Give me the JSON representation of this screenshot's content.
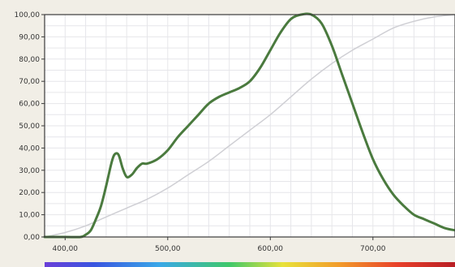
{
  "chart_data": {
    "type": "line",
    "title": "",
    "xlabel": "",
    "ylabel": "",
    "xlim": [
      380,
      780
    ],
    "ylim": [
      0,
      100
    ],
    "grid": true,
    "x_ticks": [
      "400,00",
      "500,00",
      "600,00",
      "700,00"
    ],
    "x_tick_values": [
      400,
      500,
      600,
      700
    ],
    "y_ticks": [
      "0,00",
      "10,00",
      "20,00",
      "30,00",
      "40,00",
      "50,00",
      "60,00",
      "70,00",
      "80,00",
      "90,00",
      "100,00"
    ],
    "y_tick_values": [
      0,
      10,
      20,
      30,
      40,
      50,
      60,
      70,
      80,
      90,
      100
    ],
    "series": [
      {
        "color": "#4a7a3e",
        "points": [
          [
            380,
            0
          ],
          [
            400,
            0
          ],
          [
            415,
            0
          ],
          [
            420,
            1
          ],
          [
            425,
            3
          ],
          [
            430,
            8
          ],
          [
            435,
            14
          ],
          [
            440,
            23
          ],
          [
            445,
            33
          ],
          [
            448,
            37
          ],
          [
            452,
            37
          ],
          [
            456,
            31
          ],
          [
            460,
            27
          ],
          [
            465,
            28
          ],
          [
            470,
            31
          ],
          [
            475,
            33
          ],
          [
            480,
            33
          ],
          [
            490,
            35
          ],
          [
            500,
            39
          ],
          [
            510,
            45
          ],
          [
            520,
            50
          ],
          [
            530,
            55
          ],
          [
            540,
            60
          ],
          [
            550,
            63
          ],
          [
            560,
            65
          ],
          [
            570,
            67
          ],
          [
            580,
            70
          ],
          [
            590,
            76
          ],
          [
            600,
            84
          ],
          [
            610,
            92
          ],
          [
            620,
            98
          ],
          [
            630,
            100
          ],
          [
            640,
            100
          ],
          [
            650,
            96
          ],
          [
            660,
            86
          ],
          [
            670,
            73
          ],
          [
            680,
            60
          ],
          [
            690,
            47
          ],
          [
            700,
            35
          ],
          [
            710,
            26
          ],
          [
            720,
            19
          ],
          [
            730,
            14
          ],
          [
            740,
            10
          ],
          [
            750,
            8
          ],
          [
            760,
            6
          ],
          [
            770,
            4
          ],
          [
            780,
            3
          ]
        ]
      },
      {
        "color": "#cfcfd4",
        "points": [
          [
            380,
            0
          ],
          [
            400,
            2
          ],
          [
            420,
            5
          ],
          [
            440,
            9
          ],
          [
            460,
            13
          ],
          [
            480,
            17
          ],
          [
            500,
            22
          ],
          [
            520,
            28
          ],
          [
            540,
            34
          ],
          [
            560,
            41
          ],
          [
            580,
            48
          ],
          [
            600,
            55
          ],
          [
            620,
            63
          ],
          [
            640,
            71
          ],
          [
            660,
            78
          ],
          [
            680,
            84
          ],
          [
            700,
            89
          ],
          [
            720,
            94
          ],
          [
            740,
            97
          ],
          [
            760,
            99
          ],
          [
            780,
            100
          ]
        ]
      }
    ],
    "spectrum_bar": true,
    "colors": {
      "background": "#f1eee6",
      "plot_background": "#ffffff",
      "grid": "#e6e6ea",
      "frame": "#3b3b3b"
    }
  }
}
